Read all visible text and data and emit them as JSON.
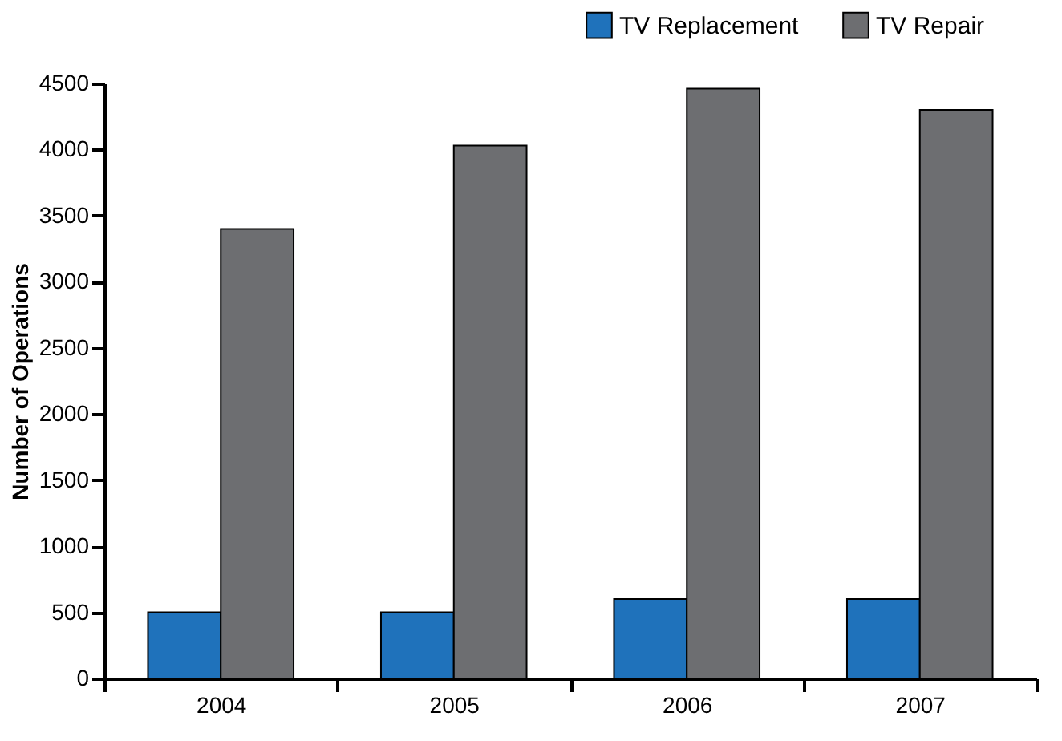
{
  "chart_data": {
    "type": "bar",
    "ylabel": "Number of Operations",
    "categories": [
      "2004",
      "2005",
      "2006",
      "2007"
    ],
    "series": [
      {
        "name": "TV Replacement",
        "color": "#1f72bb",
        "values": [
          500,
          500,
          600,
          600
        ]
      },
      {
        "name": "TV Repair",
        "color": "#6d6e71",
        "values": [
          3400,
          4030,
          4460,
          4300
        ]
      }
    ],
    "ylim": [
      0,
      4500
    ],
    "yticks": [
      0,
      500,
      1000,
      1500,
      2000,
      2500,
      3000,
      3500,
      4000,
      4500
    ],
    "grid": false,
    "legend": "top right"
  }
}
